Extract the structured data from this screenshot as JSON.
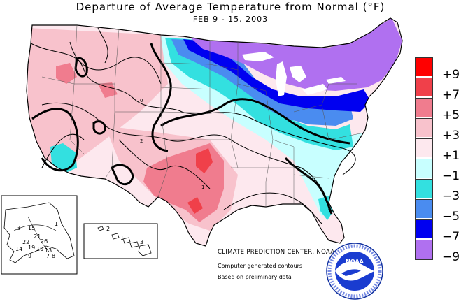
{
  "title": "Departure of Average Temperature from Normal (°F)",
  "subtitle": "FEB 9 - 15, 2003",
  "legend": {
    "labels": [
      "+9",
      "+7",
      "+5",
      "+3",
      "+1",
      "−1",
      "−3",
      "−5",
      "−7",
      "−9"
    ],
    "colors": [
      "#ff0000",
      "#f0404a",
      "#f07c8e",
      "#f8c2cc",
      "#fde8ee",
      "#c8ffff",
      "#33e0e0",
      "#4a8cf0",
      "#0000f0",
      "#b070f0"
    ]
  },
  "credits": {
    "center": "CLIMATE PREDICTION CENTER, NOAA",
    "line2": "Computer generated contours",
    "line3": "Based on preliminary data"
  },
  "logo_text": "NOAA",
  "alaska_labels": [
    "1",
    "3",
    "15",
    "21",
    "22",
    "26",
    "14",
    "19",
    "10",
    "13",
    "9",
    "8",
    "7"
  ],
  "hawaii_labels": [
    "2",
    "1",
    "3"
  ]
}
